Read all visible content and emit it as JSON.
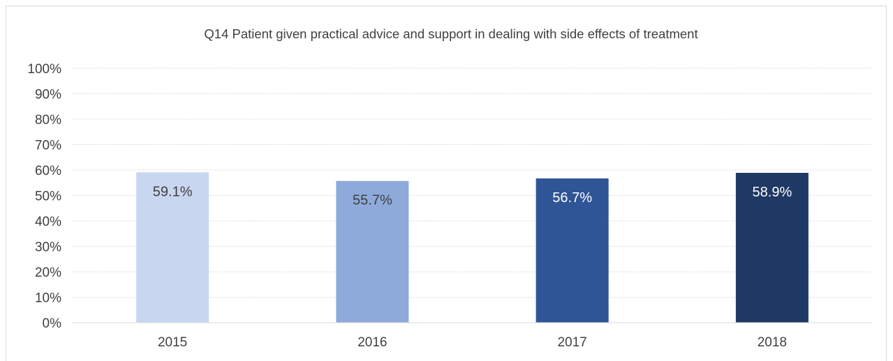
{
  "chart_data": {
    "type": "bar",
    "title": "Q14 Patient given practical advice and support in dealing with side effects of treatment",
    "categories": [
      "2015",
      "2016",
      "2017",
      "2018"
    ],
    "values": [
      59.1,
      55.7,
      56.7,
      58.9
    ],
    "value_labels": [
      "59.1%",
      "55.7%",
      "56.7%",
      "58.9%"
    ],
    "bar_colors": [
      "#c9d6ef",
      "#8eaadb",
      "#2f5597",
      "#1f3864"
    ],
    "label_colors": [
      "#404040",
      "#404040",
      "#ffffff",
      "#ffffff"
    ],
    "y_ticks": [
      "0%",
      "10%",
      "20%",
      "30%",
      "40%",
      "50%",
      "60%",
      "70%",
      "80%",
      "90%",
      "100%"
    ],
    "ylim": [
      0,
      100
    ],
    "grid": true,
    "legend": "none"
  }
}
